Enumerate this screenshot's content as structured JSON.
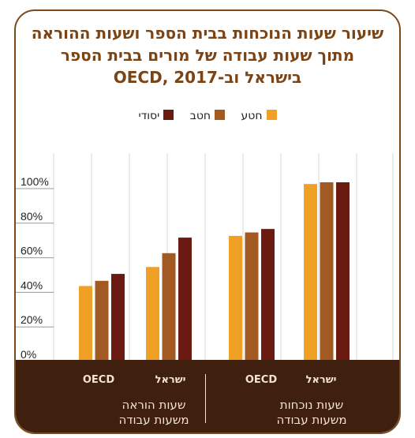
{
  "chart_data": {
    "type": "bar",
    "title_lines": [
      "שיעור שעות הנוכחות בבית הספר ושעות ההוראה",
      "מתוך שעות עבודה של מורים בבית הספר",
      "בישראל וב-OECD, 2017"
    ],
    "groups": [
      {
        "label_lines": [
          "שעות נוכחות",
          "משעות עבודה"
        ],
        "categories": [
          "ישראל",
          "OECD"
        ]
      },
      {
        "label_lines": [
          "שעות הוראה",
          "משעות עבודה"
        ],
        "categories": [
          "ישראל",
          "OECD"
        ]
      }
    ],
    "series": [
      {
        "name": "חטע",
        "color": "#f0a024",
        "values": [
          99,
          69,
          51,
          40
        ]
      },
      {
        "name": "חטב",
        "color": "#a35a22",
        "values": [
          100,
          71,
          59,
          43
        ]
      },
      {
        "name": "יסודי",
        "color": "#6b1a12",
        "values": [
          100,
          73,
          68,
          47
        ]
      }
    ],
    "y_ticks": [
      "0%",
      "20%",
      "40%",
      "60%",
      "80%",
      "100%"
    ],
    "ylim": [
      0,
      100
    ],
    "legend_position": "top-center",
    "grid": "vertical"
  }
}
